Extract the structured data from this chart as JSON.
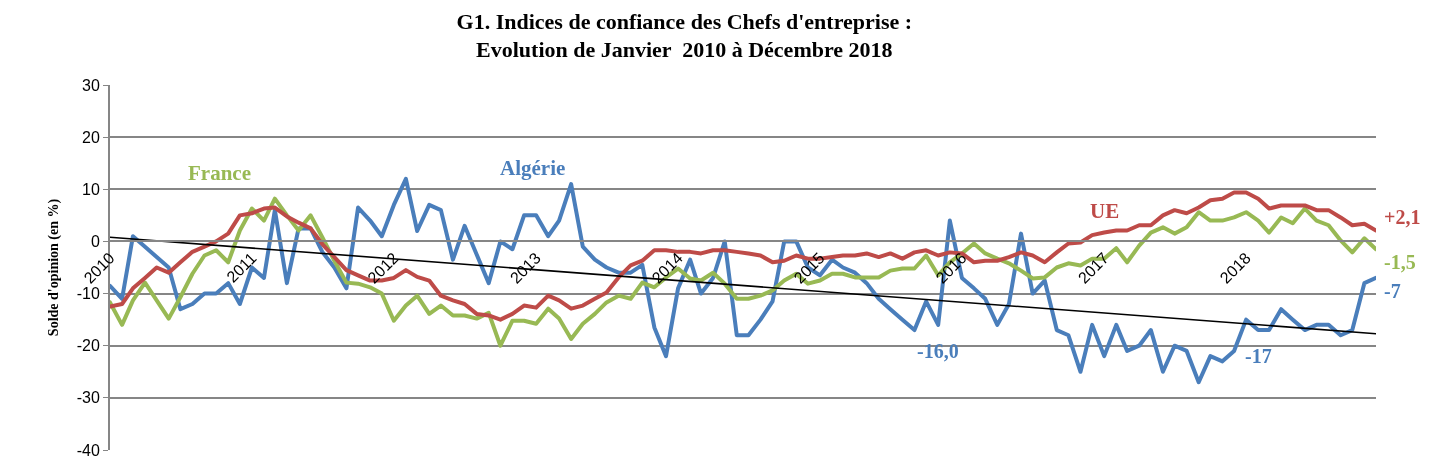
{
  "chart_data": {
    "type": "line",
    "title": "G1. Indices de confiance des Chefs d'entreprise :\nEvolution de Janvier  2010 à Décembre 2018",
    "ylabel": "Solde d'opinion (en %)",
    "x": [
      "2010-01",
      "2010-02",
      "2010-03",
      "2010-04",
      "2010-05",
      "2010-06",
      "2010-07",
      "2010-08",
      "2010-09",
      "2010-10",
      "2010-11",
      "2010-12",
      "2011-01",
      "2011-02",
      "2011-03",
      "2011-04",
      "2011-05",
      "2011-06",
      "2011-07",
      "2011-08",
      "2011-09",
      "2011-10",
      "2011-11",
      "2011-12",
      "2012-01",
      "2012-02",
      "2012-03",
      "2012-04",
      "2012-05",
      "2012-06",
      "2012-07",
      "2012-08",
      "2012-09",
      "2012-10",
      "2012-11",
      "2012-12",
      "2013-01",
      "2013-02",
      "2013-03",
      "2013-04",
      "2013-05",
      "2013-06",
      "2013-07",
      "2013-08",
      "2013-09",
      "2013-10",
      "2013-11",
      "2013-12",
      "2014-01",
      "2014-02",
      "2014-03",
      "2014-04",
      "2014-05",
      "2014-06",
      "2014-07",
      "2014-08",
      "2014-09",
      "2014-10",
      "2014-11",
      "2014-12",
      "2015-01",
      "2015-02",
      "2015-03",
      "2015-04",
      "2015-05",
      "2015-06",
      "2015-07",
      "2015-08",
      "2015-09",
      "2015-10",
      "2015-11",
      "2015-12",
      "2016-01",
      "2016-02",
      "2016-03",
      "2016-04",
      "2016-05",
      "2016-06",
      "2016-07",
      "2016-08",
      "2016-09",
      "2016-10",
      "2016-11",
      "2016-12",
      "2017-01",
      "2017-02",
      "2017-03",
      "2017-04",
      "2017-05",
      "2017-06",
      "2017-07",
      "2017-08",
      "2017-09",
      "2017-10",
      "2017-11",
      "2017-12",
      "2018-01",
      "2018-02",
      "2018-03",
      "2018-04",
      "2018-05",
      "2018-06",
      "2018-07",
      "2018-08",
      "2018-09",
      "2018-10",
      "2018-11",
      "2018-12"
    ],
    "series": [
      {
        "name": "Algérie",
        "color": "#4a7ebb",
        "values": [
          -8.5,
          -11,
          1,
          -1,
          -3,
          -5,
          -13,
          -12,
          -10,
          -10,
          -8,
          -12,
          -5,
          -7,
          6,
          -8,
          2.5,
          2.5,
          -2,
          -5,
          -9,
          6.5,
          4,
          1,
          7,
          12,
          2,
          7,
          6,
          -3.5,
          3,
          -2.5,
          -8,
          0,
          -1.5,
          5,
          5,
          1,
          4,
          11,
          -1,
          -3.5,
          -5,
          -6,
          -6,
          -4.5,
          -16.5,
          -22,
          -9,
          -3.5,
          -10,
          -7,
          0,
          -18,
          -18,
          -15,
          -11.5,
          0,
          0,
          -5,
          -6.5,
          -3.5,
          -5,
          -6,
          -8,
          -11,
          -13,
          -15,
          -17,
          -11.5,
          -16,
          4,
          -7,
          -9,
          -11,
          -16,
          -12,
          1.5,
          -10,
          -7.5,
          -17,
          -18,
          -25,
          -16,
          -22,
          -16,
          -21,
          -20,
          -17,
          -25,
          -20,
          -21,
          -27,
          -22,
          -23,
          -21,
          -15,
          -17,
          -17,
          -13,
          -15,
          -17,
          -16,
          -16,
          -18,
          -17,
          -8,
          -7
        ],
        "value_labels": [
          null,
          null,
          null,
          null,
          null,
          null,
          null,
          null,
          null,
          null,
          null,
          null,
          null,
          null,
          null,
          null,
          null,
          null,
          null,
          null,
          null,
          null,
          null,
          null,
          null,
          null,
          null,
          null,
          null,
          null,
          null,
          null,
          null,
          null,
          null,
          null,
          null,
          null,
          null,
          null,
          null,
          null,
          null,
          null,
          null,
          null,
          null,
          null,
          null,
          null,
          null,
          null,
          null,
          null,
          null,
          null,
          null,
          null,
          null,
          null,
          null,
          null,
          null,
          null,
          null,
          null,
          null,
          null,
          null,
          null,
          "-16,0",
          null,
          null,
          null,
          null,
          null,
          null,
          null,
          null,
          null,
          null,
          null,
          null,
          null,
          null,
          null,
          null,
          null,
          null,
          null,
          null,
          null,
          null,
          null,
          null,
          null,
          null,
          "-17",
          null,
          null,
          null,
          null,
          null,
          null,
          null,
          null,
          null,
          "-7"
        ]
      },
      {
        "name": "France",
        "color": "#98b954",
        "values": [
          -11.7,
          -16,
          -11.3,
          -7.9,
          -11.3,
          -14.8,
          -10.7,
          -6.2,
          -2.7,
          -1.7,
          -4,
          2.1,
          6.3,
          4,
          8.2,
          5,
          2.1,
          5,
          0.8,
          -3.7,
          -7.9,
          -8.1,
          -8.8,
          -10,
          -15.2,
          -12.3,
          -10.4,
          -13.9,
          -12.3,
          -14.2,
          -14.2,
          -14.8,
          -13.7,
          -20,
          -15.2,
          -15.2,
          -15.8,
          -12.9,
          -14.8,
          -18.7,
          -15.8,
          -13.9,
          -11.7,
          -10.4,
          -11,
          -7.9,
          -8.8,
          -6.9,
          -5.2,
          -7.1,
          -7.5,
          -6,
          -8.1,
          -11,
          -11,
          -10.4,
          -9.4,
          -7.5,
          -6.2,
          -8.1,
          -7.5,
          -6.2,
          -6.2,
          -6.9,
          -6.9,
          -6.9,
          -5.6,
          -5.2,
          -5.2,
          -2.7,
          -6.5,
          -4,
          -2.3,
          -0.4,
          -2.3,
          -3.3,
          -4.2,
          -5.6,
          -7.1,
          -6.9,
          -5,
          -4.2,
          -4.6,
          -3.3,
          -3.3,
          -1.3,
          -4,
          -0.8,
          1.7,
          2.7,
          1.5,
          2.7,
          5.6,
          4,
          4,
          4.6,
          5.6,
          4,
          1.7,
          4.6,
          3.5,
          6.3,
          4,
          3.1,
          0.2,
          -2.1,
          0.6,
          -1.5
        ],
        "value_labels": [
          null,
          null,
          null,
          null,
          null,
          null,
          null,
          null,
          null,
          null,
          null,
          null,
          null,
          null,
          null,
          null,
          null,
          null,
          null,
          null,
          null,
          null,
          null,
          null,
          null,
          null,
          null,
          null,
          null,
          null,
          null,
          null,
          null,
          null,
          null,
          null,
          null,
          null,
          null,
          null,
          null,
          null,
          null,
          null,
          null,
          null,
          null,
          null,
          null,
          null,
          null,
          null,
          null,
          null,
          null,
          null,
          null,
          null,
          null,
          null,
          null,
          null,
          null,
          null,
          null,
          null,
          null,
          null,
          null,
          null,
          null,
          null,
          null,
          null,
          null,
          null,
          null,
          null,
          null,
          null,
          null,
          null,
          null,
          null,
          null,
          null,
          null,
          null,
          null,
          null,
          null,
          null,
          null,
          null,
          null,
          null,
          null,
          null,
          null,
          null,
          null,
          null,
          null,
          null,
          null,
          null,
          null,
          "-1,5"
        ]
      },
      {
        "name": "UE",
        "color": "#be4b48",
        "values": [
          -12.5,
          -12,
          -9,
          -7,
          -5,
          -6,
          -4,
          -2,
          -1,
          0,
          1.5,
          5,
          5.4,
          6.3,
          6.5,
          4.8,
          3.6,
          2.5,
          -0.5,
          -3,
          -5.5,
          -6.5,
          -7.5,
          -7.5,
          -7,
          -5.5,
          -6.8,
          -7.5,
          -10.4,
          -11.3,
          -12,
          -13.9,
          -14.2,
          -15,
          -13.9,
          -12.3,
          -12.7,
          -10.4,
          -11.3,
          -12.9,
          -12.3,
          -11,
          -9.8,
          -6.9,
          -4.6,
          -3.7,
          -1.7,
          -1.7,
          -2,
          -2,
          -2.3,
          -1.7,
          -1.7,
          -2,
          -2.3,
          -2.7,
          -4,
          -3.7,
          -2.7,
          -3.3,
          -3.3,
          -3,
          -2.7,
          -2.7,
          -2.3,
          -3,
          -2.3,
          -3.3,
          -2.1,
          -1.7,
          -2.7,
          -2.1,
          -2.3,
          -4,
          -3.7,
          -3.7,
          -3,
          -2.1,
          -2.7,
          -4,
          -2.1,
          -0.4,
          -0.2,
          1.2,
          1.7,
          2.1,
          2.1,
          3.1,
          3.1,
          5,
          6,
          5.4,
          6.5,
          7.9,
          8.2,
          9.4,
          9.4,
          8.2,
          6.3,
          6.9,
          6.9,
          6.9,
          6,
          6,
          4.6,
          3.1,
          3.4,
          2.1
        ],
        "value_labels": [
          null,
          null,
          null,
          null,
          null,
          null,
          null,
          null,
          null,
          null,
          null,
          null,
          null,
          null,
          null,
          null,
          null,
          null,
          null,
          null,
          null,
          null,
          null,
          null,
          null,
          null,
          null,
          null,
          null,
          null,
          null,
          null,
          null,
          null,
          null,
          null,
          null,
          null,
          null,
          null,
          null,
          null,
          null,
          null,
          null,
          null,
          null,
          null,
          null,
          null,
          null,
          null,
          null,
          null,
          null,
          null,
          null,
          null,
          null,
          null,
          null,
          null,
          null,
          null,
          null,
          null,
          null,
          null,
          null,
          null,
          null,
          null,
          null,
          null,
          null,
          null,
          null,
          null,
          null,
          null,
          null,
          null,
          null,
          null,
          null,
          null,
          null,
          null,
          null,
          null,
          null,
          null,
          null,
          null,
          null,
          null,
          null,
          null,
          null,
          null,
          null,
          null,
          null,
          null,
          null,
          null,
          null,
          "+2,1"
        ]
      },
      {
        "type": "line",
        "color": "#000000",
        "x": [
          "2010-01",
          "2018-12"
        ],
        "values": [
          0.8,
          -17.7
        ]
      }
    ],
    "xlim": [
      "2010-01",
      "2018-12"
    ],
    "xticks": [
      {
        "value": "2010-01",
        "label": "2010"
      },
      {
        "value": "2011-01",
        "label": "2011"
      },
      {
        "value": "2012-01",
        "label": "2012"
      },
      {
        "value": "2013-01",
        "label": "2013"
      },
      {
        "value": "2014-01",
        "label": "2014"
      },
      {
        "value": "2015-01",
        "label": "2015"
      },
      {
        "value": "2016-01",
        "label": "2016"
      },
      {
        "value": "2017-01",
        "label": "2017"
      },
      {
        "value": "2018-01",
        "label": "2018"
      }
    ],
    "ylim": [
      -40,
      30
    ],
    "yticks": [
      -40,
      -30,
      -20,
      -10,
      0,
      10,
      20,
      30
    ],
    "grid": "y"
  }
}
